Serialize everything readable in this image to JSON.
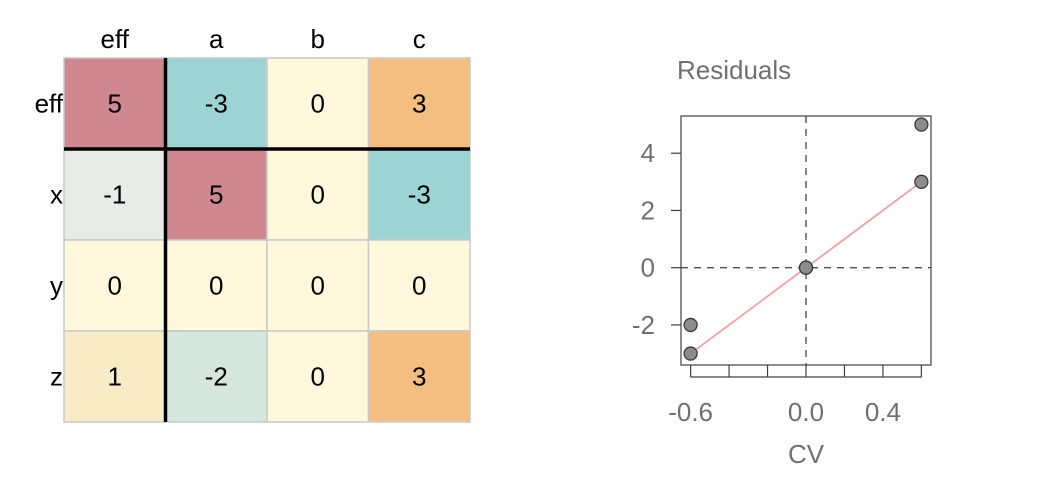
{
  "chart_data": [
    {
      "type": "heatmap",
      "columns": [
        "eff",
        "a",
        "b",
        "c"
      ],
      "rows": [
        "eff",
        "x",
        "y",
        "z"
      ],
      "values": [
        [
          5,
          -3,
          0,
          3
        ],
        [
          -1,
          5,
          0,
          -3
        ],
        [
          0,
          0,
          0,
          0
        ],
        [
          1,
          -2,
          0,
          3
        ]
      ],
      "colors": [
        [
          "#D08890",
          "#9CD4D4",
          "#FFF8DC",
          "#F4BE80"
        ],
        [
          "#E8ECE6",
          "#D08890",
          "#FFF8DC",
          "#9CD4D4"
        ],
        [
          "#FFF8DC",
          "#FFF8DC",
          "#FFF8DC",
          "#FFF8DC"
        ],
        [
          "#F8ECC6",
          "#D4E6DE",
          "#FFF8DC",
          "#F4BE80"
        ]
      ],
      "separator_color": "#000000",
      "grid_color": "#C8C8C8"
    },
    {
      "type": "scatter",
      "title": "Residuals",
      "xlabel": "CV",
      "ylabel": "",
      "xlim": [
        -0.65,
        0.65
      ],
      "ylim": [
        -3.4,
        5.3
      ],
      "x_ticks": [
        -0.6,
        -0.4,
        -0.2,
        0.0,
        0.2,
        0.4,
        0.6
      ],
      "x_tick_labels": [
        "-0.6",
        "",
        "",
        "0.0",
        "",
        "0.4",
        ""
      ],
      "y_ticks": [
        -2,
        0,
        2,
        4
      ],
      "y_tick_labels": [
        "-2",
        "0",
        "2",
        "4"
      ],
      "points": [
        {
          "x": 0.6,
          "y": 5
        },
        {
          "x": 0.6,
          "y": 3
        },
        {
          "x": 0.0,
          "y": 0
        },
        {
          "x": 0.0,
          "y": 0
        },
        {
          "x": -0.6,
          "y": -2
        },
        {
          "x": -0.6,
          "y": -3
        }
      ],
      "fit_line": {
        "x": [
          -0.6,
          0.6
        ],
        "y": [
          -3,
          3
        ]
      },
      "reference_lines": {
        "x": 0,
        "y": 0
      },
      "point_color": "#8C8C8C",
      "line_color": "#F4A0A0",
      "text_color": "#707070"
    }
  ]
}
